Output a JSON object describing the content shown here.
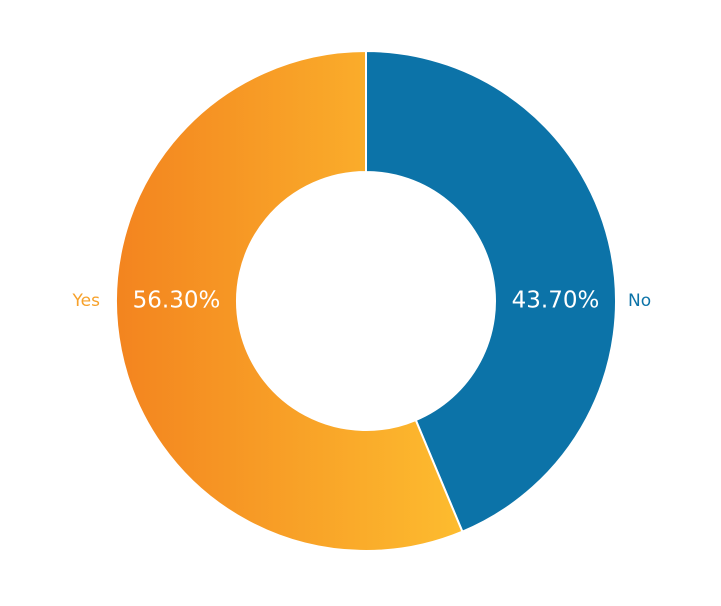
{
  "chart_data": {
    "type": "pie",
    "style": "donut",
    "slices": [
      {
        "label": "No",
        "value": 43.7,
        "display": "43.70%",
        "color": "#0c73a8"
      },
      {
        "label": "Yes",
        "value": 56.3,
        "display": "56.30%",
        "color": "#f7a12a",
        "gradient": [
          "#f3841f",
          "#fdbc2f"
        ]
      }
    ],
    "slice_border_color": "#ffffff",
    "legend": "none"
  }
}
